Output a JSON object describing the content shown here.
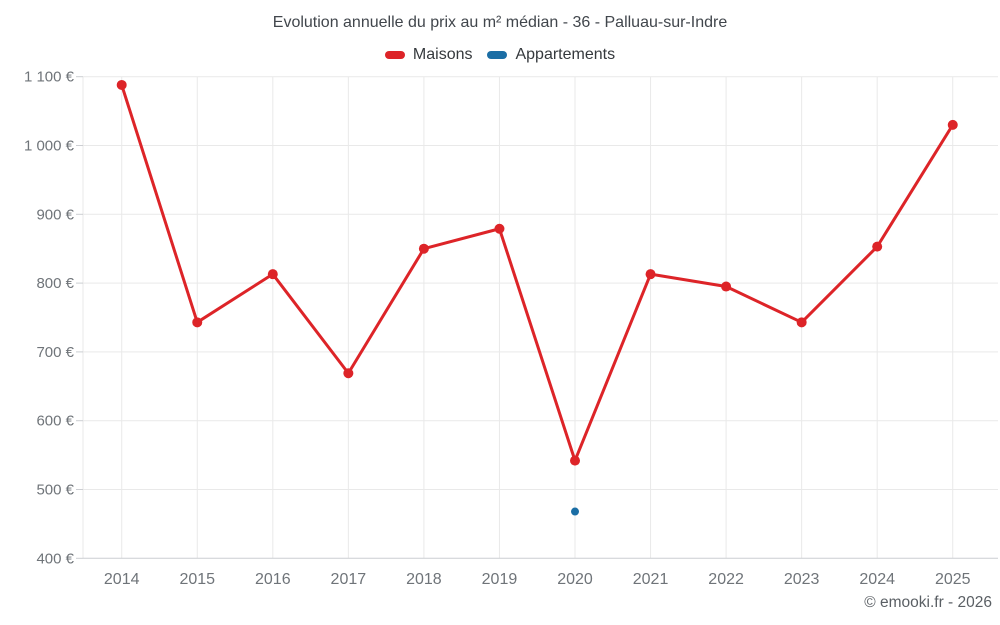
{
  "chart_data": {
    "type": "line",
    "title": "Evolution annuelle du prix au m² médian - 36 - Palluau-sur-Indre",
    "categories": [
      "2014",
      "2015",
      "2016",
      "2017",
      "2018",
      "2019",
      "2020",
      "2021",
      "2022",
      "2023",
      "2024",
      "2025"
    ],
    "series": [
      {
        "name": "Maisons",
        "color": "#dd2428",
        "marker_radius": 5,
        "values": [
          1088,
          743,
          813,
          669,
          850,
          879,
          542,
          813,
          795,
          743,
          853,
          1030
        ]
      },
      {
        "name": "Appartements",
        "color": "#1b6ea5",
        "marker_radius": 4,
        "values": [
          null,
          null,
          null,
          null,
          null,
          null,
          468,
          null,
          null,
          null,
          null,
          null
        ]
      }
    ],
    "ylim": [
      400,
      1100
    ],
    "y_tick_step": 100,
    "y_tick_labels": [
      "400 €",
      "500 €",
      "600 €",
      "700 €",
      "800 €",
      "900 €",
      "1 000 €",
      "1 100 €"
    ],
    "grid": true,
    "legend_position": "top"
  },
  "footer": {
    "copyright": "© emooki.fr - 2026"
  }
}
